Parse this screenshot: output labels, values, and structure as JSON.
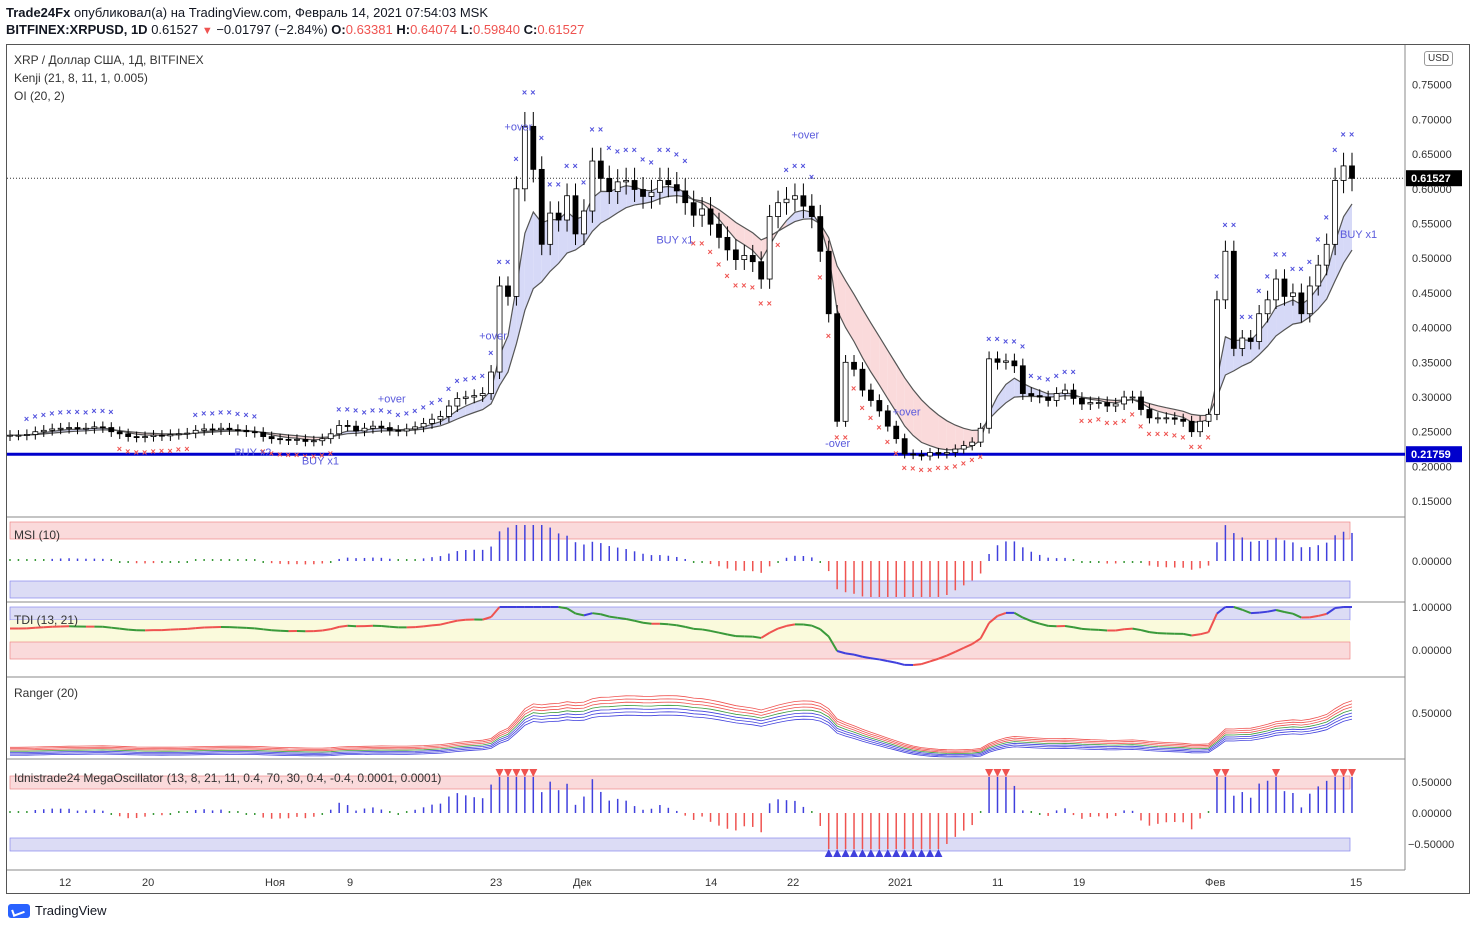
{
  "header": {
    "publisher": "Trade24Fx",
    "published_text": "опубликовал(а) на TradingView.com, Февраль 14, 2021 07:54:03 MSK",
    "symbol": "BITFINEX:XRPUSD, 1D",
    "last": "0.61527",
    "change": "−0.01797 (−2.84%)",
    "o_label": "O:",
    "o": "0.63381",
    "h_label": "H:",
    "h": "0.64074",
    "l_label": "L:",
    "l": "0.59840",
    "c_label": "C:",
    "c": "0.61527"
  },
  "legends": {
    "title": "XRP / Доллар США, 1Д, BITFINEX",
    "kenji": "Kenji (21, 8, 11, 1, 0.005)",
    "oi": "OI (20, 2)",
    "msi": "MSI (10)",
    "tdi": "TDI (13, 21)",
    "ranger": "Ranger (20)",
    "mega": "Idnistrade24 MegaOscillator (13, 8, 21, 11, 0.4, 70, 30, 0.4, -0.4, 0.0001, 0.0001)"
  },
  "currency_badge": "USD",
  "footer": {
    "brand": "TradingView"
  },
  "colors": {
    "bull": "#ffffff",
    "bear": "#000000",
    "cloud_up": "#d6d9f7",
    "cloud_down": "#fadadb",
    "cloud_green": "#dff2df",
    "hline": "#0000cc",
    "marker_blue": "#5050dd",
    "marker_red": "#ef5350"
  },
  "chart_data": [
    {
      "type": "candlestick",
      "name": "",
      "y_ticks": [
        "0.75000",
        "0.70000",
        "0.65000",
        "0.60000",
        "0.55000",
        "0.50000",
        "0.45000",
        "0.40000",
        "0.35000",
        "0.30000",
        "0.25000",
        "0.20000",
        "0.15000"
      ],
      "x_ticks": [
        "12",
        "20",
        "Ноя",
        "9",
        "23",
        "Дек",
        "14",
        "22",
        "2021",
        "11",
        "19",
        "Фев",
        "15"
      ],
      "ylim": [
        0.13,
        0.8
      ],
      "last_price_label": "0.61527",
      "hline_value": 0.21759,
      "hline_label": "0.21759",
      "text_annotations": [
        "+over",
        "-over",
        "BUY x1",
        "BUY x2"
      ],
      "close": [
        0.245,
        0.245,
        0.246,
        0.25,
        0.252,
        0.254,
        0.255,
        0.256,
        0.254,
        0.255,
        0.257,
        0.256,
        0.25,
        0.247,
        0.243,
        0.242,
        0.243,
        0.245,
        0.244,
        0.246,
        0.247,
        0.248,
        0.252,
        0.254,
        0.253,
        0.255,
        0.253,
        0.252,
        0.25,
        0.249,
        0.243,
        0.24,
        0.239,
        0.238,
        0.239,
        0.236,
        0.237,
        0.24,
        0.247,
        0.259,
        0.258,
        0.251,
        0.255,
        0.258,
        0.256,
        0.252,
        0.251,
        0.254,
        0.257,
        0.262,
        0.268,
        0.272,
        0.287,
        0.298,
        0.3,
        0.302,
        0.305,
        0.336,
        0.46,
        0.445,
        0.6,
        0.69,
        0.628,
        0.52,
        0.565,
        0.555,
        0.59,
        0.535,
        0.568,
        0.64,
        0.615,
        0.596,
        0.61,
        0.612,
        0.599,
        0.589,
        0.595,
        0.612,
        0.606,
        0.597,
        0.58,
        0.562,
        0.571,
        0.549,
        0.53,
        0.512,
        0.498,
        0.504,
        0.495,
        0.47,
        0.56,
        0.58,
        0.585,
        0.59,
        0.575,
        0.56,
        0.51,
        0.42,
        0.265,
        0.35,
        0.34,
        0.31,
        0.295,
        0.28,
        0.258,
        0.24,
        0.218,
        0.217,
        0.215,
        0.22,
        0.218,
        0.22,
        0.225,
        0.23,
        0.235,
        0.255,
        0.355,
        0.35,
        0.352,
        0.345,
        0.305,
        0.302,
        0.3,
        0.295,
        0.305,
        0.31,
        0.298,
        0.29,
        0.292,
        0.292,
        0.287,
        0.29,
        0.3,
        0.3,
        0.282,
        0.27,
        0.27,
        0.27,
        0.268,
        0.265,
        0.25,
        0.265,
        0.275,
        0.44,
        0.51,
        0.37,
        0.385,
        0.38,
        0.42,
        0.44,
        0.47,
        0.445,
        0.45,
        0.42,
        0.46,
        0.49,
        0.52,
        0.612,
        0.633,
        0.615
      ],
      "open": [
        0.244,
        0.245,
        0.245,
        0.246,
        0.25,
        0.252,
        0.254,
        0.255,
        0.256,
        0.254,
        0.255,
        0.257,
        0.256,
        0.25,
        0.247,
        0.243,
        0.242,
        0.243,
        0.245,
        0.244,
        0.246,
        0.247,
        0.248,
        0.252,
        0.254,
        0.253,
        0.255,
        0.253,
        0.252,
        0.25,
        0.249,
        0.243,
        0.24,
        0.239,
        0.238,
        0.239,
        0.236,
        0.237,
        0.24,
        0.247,
        0.259,
        0.258,
        0.251,
        0.255,
        0.258,
        0.256,
        0.252,
        0.251,
        0.254,
        0.257,
        0.262,
        0.268,
        0.272,
        0.287,
        0.298,
        0.3,
        0.302,
        0.305,
        0.336,
        0.46,
        0.445,
        0.6,
        0.69,
        0.628,
        0.52,
        0.565,
        0.555,
        0.59,
        0.535,
        0.568,
        0.64,
        0.615,
        0.596,
        0.61,
        0.612,
        0.599,
        0.589,
        0.595,
        0.612,
        0.606,
        0.597,
        0.58,
        0.562,
        0.571,
        0.549,
        0.53,
        0.512,
        0.498,
        0.504,
        0.495,
        0.47,
        0.56,
        0.58,
        0.585,
        0.59,
        0.575,
        0.56,
        0.51,
        0.42,
        0.265,
        0.35,
        0.34,
        0.31,
        0.295,
        0.28,
        0.258,
        0.24,
        0.218,
        0.217,
        0.215,
        0.22,
        0.218,
        0.22,
        0.225,
        0.23,
        0.235,
        0.255,
        0.355,
        0.35,
        0.352,
        0.345,
        0.305,
        0.302,
        0.3,
        0.295,
        0.305,
        0.31,
        0.298,
        0.29,
        0.292,
        0.292,
        0.287,
        0.29,
        0.3,
        0.3,
        0.282,
        0.27,
        0.27,
        0.27,
        0.268,
        0.265,
        0.25,
        0.265,
        0.275,
        0.44,
        0.51,
        0.37,
        0.385,
        0.38,
        0.42,
        0.44,
        0.47,
        0.445,
        0.45,
        0.42,
        0.46,
        0.49,
        0.52,
        0.612,
        0.633
      ]
    },
    {
      "type": "bar",
      "name": "",
      "y_ticks": [
        "0.00000"
      ]
    },
    {
      "type": "line",
      "name": "",
      "y_ticks": [
        "1.00000",
        "0.00000"
      ]
    },
    {
      "type": "line",
      "name": "",
      "y_ticks": [
        "0.50000"
      ]
    },
    {
      "type": "bar",
      "name": "",
      "y_ticks": [
        "0.50000",
        "0.00000",
        "−0.50000"
      ]
    }
  ]
}
